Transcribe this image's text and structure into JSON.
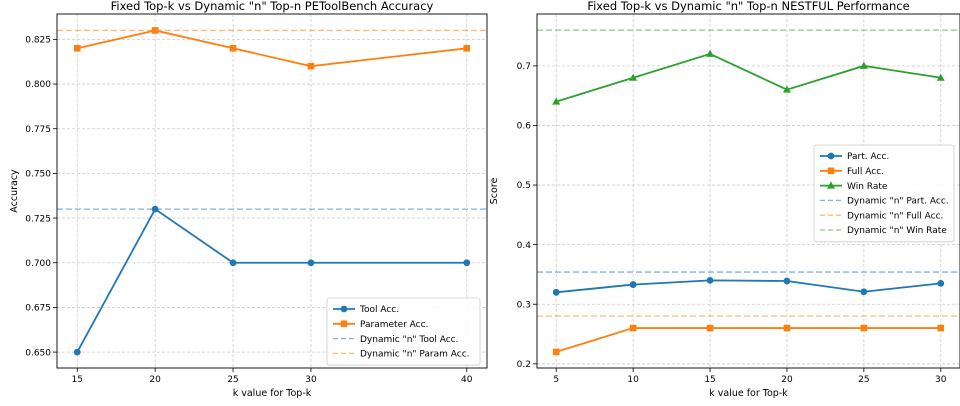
{
  "chart_data": [
    {
      "type": "line",
      "title": "Fixed Top-k vs Dynamic \"n\" Top-n PEToolBench Accuracy",
      "xlabel": "k value for Top-k",
      "ylabel": "Accuracy",
      "x": [
        15,
        20,
        25,
        30,
        40
      ],
      "xticks": [
        15,
        20,
        25,
        30,
        40
      ],
      "xlim": [
        13.7,
        41.3
      ],
      "ylim": [
        0.6411,
        0.8392
      ],
      "yticks": [
        0.65,
        0.675,
        0.7,
        0.725,
        0.75,
        0.775,
        0.8,
        0.825
      ],
      "ytick_labels": [
        "0.650",
        "0.675",
        "0.700",
        "0.725",
        "0.750",
        "0.775",
        "0.800",
        "0.825"
      ],
      "grid": true,
      "legend_position": "lower-right",
      "series": [
        {
          "name": "Tool Acc.",
          "values": [
            0.65,
            0.73,
            0.7,
            0.7,
            0.7
          ],
          "color": "#1f77b4",
          "marker": "circle"
        },
        {
          "name": "Parameter Acc.",
          "values": [
            0.82,
            0.83,
            0.82,
            0.81,
            0.82
          ],
          "color": "#ff7f0e",
          "marker": "square"
        }
      ],
      "reference_lines": [
        {
          "name": "Dynamic \"n\" Tool Acc.",
          "value": 0.73,
          "color": "#1f77b4"
        },
        {
          "name": "Dynamic \"n\" Param Acc.",
          "value": 0.83,
          "color": "#ff7f0e"
        }
      ]
    },
    {
      "type": "line",
      "title": "Fixed Top-k vs Dynamic \"n\" Top-n NESTFUL Performance",
      "xlabel": "k value for Top-k",
      "ylabel": "Score",
      "x": [
        5,
        10,
        15,
        20,
        25,
        30
      ],
      "xticks": [
        5,
        10,
        15,
        20,
        25,
        30
      ],
      "xlim": [
        3.75,
        31.25
      ],
      "ylim": [
        0.193,
        0.787
      ],
      "yticks": [
        0.2,
        0.3,
        0.4,
        0.5,
        0.6,
        0.7
      ],
      "ytick_labels": [
        "0.2",
        "0.3",
        "0.4",
        "0.5",
        "0.6",
        "0.7"
      ],
      "grid": true,
      "legend_position": "center-right",
      "series": [
        {
          "name": "Part. Acc.",
          "values": [
            0.32,
            0.333,
            0.34,
            0.339,
            0.321,
            0.335
          ],
          "color": "#1f77b4",
          "marker": "circle"
        },
        {
          "name": "Full Acc.",
          "values": [
            0.22,
            0.26,
            0.26,
            0.26,
            0.26,
            0.26
          ],
          "color": "#ff7f0e",
          "marker": "square"
        },
        {
          "name": "Win Rate",
          "values": [
            0.64,
            0.68,
            0.72,
            0.66,
            0.7,
            0.68
          ],
          "color": "#2ca02c",
          "marker": "triangle"
        }
      ],
      "reference_lines": [
        {
          "name": "Dynamic \"n\" Part. Acc.",
          "value": 0.354,
          "color": "#1f77b4"
        },
        {
          "name": "Dynamic \"n\" Full Acc.",
          "value": 0.28,
          "color": "#ff7f0e"
        },
        {
          "name": "Dynamic \"n\" Win Rate",
          "value": 0.76,
          "color": "#2ca02c"
        }
      ]
    }
  ]
}
